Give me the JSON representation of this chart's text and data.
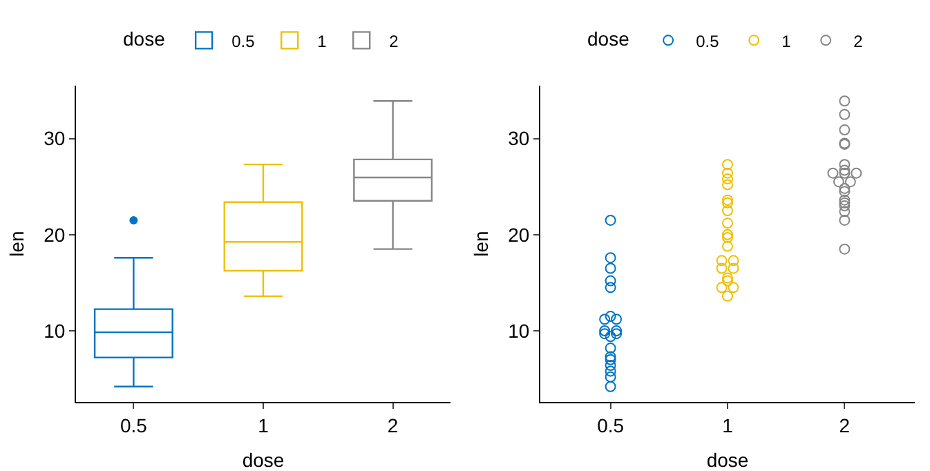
{
  "chart_data": [
    {
      "type": "box",
      "categories": [
        "0.5",
        "1",
        "2"
      ],
      "xlabel": "dose",
      "ylabel": "len",
      "legend_title": "dose",
      "legend": "top",
      "grid": false,
      "ylim": [
        2.6,
        35.5
      ],
      "yticks": [
        10,
        20,
        30
      ],
      "series": [
        {
          "name": "0.5",
          "color": "#0073c2",
          "boxes": [
            {
              "low": 4.2,
              "q1": 7.225,
              "median": 9.85,
              "q3": 12.25,
              "high": 17.6,
              "outliers": [
                21.5
              ]
            },
            null,
            null
          ]
        },
        {
          "name": "1",
          "color": "#efc000",
          "boxes": [
            null,
            {
              "low": 13.6,
              "q1": 16.25,
              "median": 19.25,
              "q3": 23.375,
              "high": 27.3
            },
            null
          ]
        },
        {
          "name": "2",
          "color": "#868686",
          "boxes": [
            null,
            null,
            {
              "low": 18.5,
              "q1": 23.525,
              "median": 25.95,
              "q3": 27.825,
              "high": 33.9
            }
          ]
        }
      ]
    },
    {
      "type": "scatter",
      "categories": [
        "0.5",
        "1",
        "2"
      ],
      "xlabel": "dose",
      "ylabel": "len",
      "legend_title": "dose",
      "legend": "top",
      "grid": false,
      "marker": "circle",
      "ylim": [
        2.6,
        35.5
      ],
      "yticks": [
        10,
        20,
        30
      ],
      "series": [
        {
          "name": "0.5",
          "color": "#0073c2",
          "x": [
            "0.5",
            "0.5",
            "0.5",
            "0.5",
            "0.5",
            "0.5",
            "0.5",
            "0.5",
            "0.5",
            "0.5",
            "0.5",
            "0.5",
            "0.5",
            "0.5",
            "0.5",
            "0.5",
            "0.5",
            "0.5",
            "0.5",
            "0.5"
          ],
          "values": [
            4.2,
            11.5,
            7.3,
            5.8,
            6.4,
            10,
            11.2,
            11.2,
            5.2,
            7,
            15.2,
            21.5,
            17.6,
            9.7,
            14.5,
            10,
            8.2,
            9.4,
            16.5,
            9.7
          ]
        },
        {
          "name": "1",
          "color": "#efc000",
          "x": [
            "1",
            "1",
            "1",
            "1",
            "1",
            "1",
            "1",
            "1",
            "1",
            "1",
            "1",
            "1",
            "1",
            "1",
            "1",
            "1",
            "1",
            "1",
            "1",
            "1"
          ],
          "values": [
            16.5,
            16.5,
            15.2,
            17.3,
            22.5,
            17.3,
            13.6,
            14.5,
            18.8,
            15.5,
            19.7,
            23.3,
            23.6,
            26.4,
            20,
            25.2,
            25.8,
            21.2,
            14.5,
            27.3
          ]
        },
        {
          "name": "2",
          "color": "#868686",
          "x": [
            "2",
            "2",
            "2",
            "2",
            "2",
            "2",
            "2",
            "2",
            "2",
            "2",
            "2",
            "2",
            "2",
            "2",
            "2",
            "2",
            "2",
            "2",
            "2",
            "2"
          ],
          "values": [
            23.6,
            18.5,
            33.9,
            25.5,
            26.4,
            32.5,
            26.7,
            21.5,
            23.3,
            29.5,
            25.5,
            26.4,
            22.4,
            24.5,
            24.8,
            30.9,
            26.4,
            27.3,
            29.4,
            23
          ]
        }
      ]
    }
  ]
}
